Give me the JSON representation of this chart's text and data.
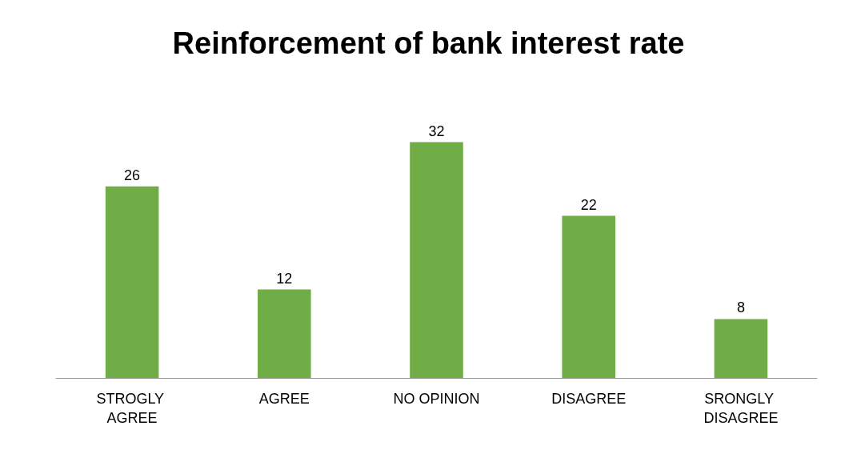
{
  "chart_data": {
    "type": "bar",
    "title": "Reinforcement of bank interest rate",
    "categories": [
      "STROGLY AGREE",
      "AGREE",
      "NO OPINION",
      "DISAGREE",
      "SRONGLY DISAGREE"
    ],
    "values": [
      26,
      12,
      32,
      22,
      8
    ],
    "color": "#70ad47",
    "data_labels": true
  }
}
